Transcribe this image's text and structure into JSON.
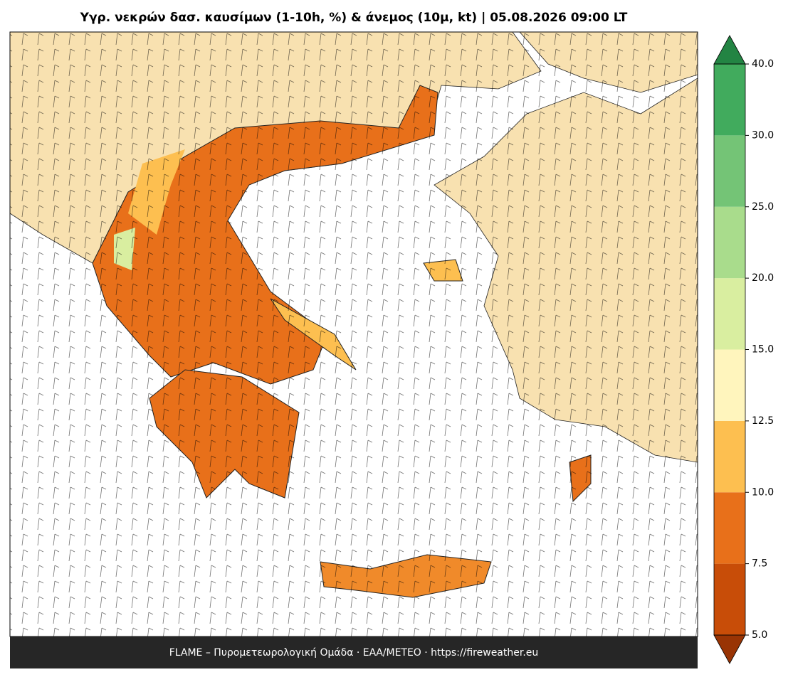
{
  "header": {
    "title": "Υγρ. νεκρών δασ. καυσίμων (1-10h, %) & άνεμος (10μ, kt)  |  05.08.2026 09:00 LT"
  },
  "colorbar": {
    "levels": [
      {
        "value": 5,
        "label": "5.0"
      },
      {
        "value": 7.5,
        "label": "7.5"
      },
      {
        "value": 10,
        "label": "10.0"
      },
      {
        "value": 12.5,
        "label": "12.5"
      },
      {
        "value": 15,
        "label": "15.0"
      },
      {
        "value": 20,
        "label": "20.0"
      },
      {
        "value": 25,
        "label": "25.0"
      },
      {
        "value": 30,
        "label": "30.0"
      },
      {
        "value": 40,
        "label": "40.0"
      }
    ],
    "colors": [
      "#c84d08",
      "#e8701a",
      "#fdbf50",
      "#fff5bd",
      "#d9eea0",
      "#a9dc8c",
      "#74c476",
      "#41ab5d"
    ],
    "under_color": "#993404",
    "over_color": "#238443"
  },
  "footer": {
    "text": "FLAME – Πυρομετεωρολογική Ομάδα · ΕΑΑ/METEO · https://fireweather.eu"
  }
}
